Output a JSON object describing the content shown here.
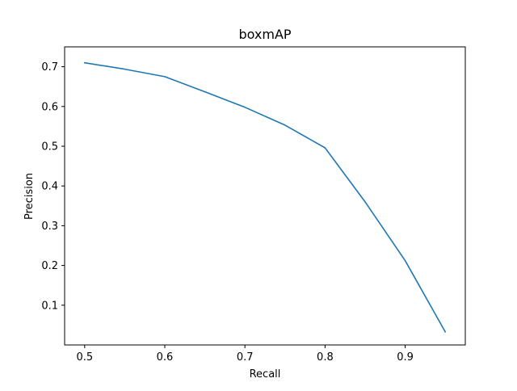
{
  "chart_data": {
    "type": "line",
    "title": "boxmAP",
    "xlabel": "Recall",
    "ylabel": "Precision",
    "xlim": [
      0.475,
      0.975
    ],
    "ylim": [
      0.0,
      0.75
    ],
    "xticks": [
      0.5,
      0.6,
      0.7,
      0.8,
      0.9
    ],
    "xtick_labels": [
      "0.5",
      "0.6",
      "0.7",
      "0.8",
      "0.9"
    ],
    "yticks": [
      0.1,
      0.2,
      0.3,
      0.4,
      0.5,
      0.6,
      0.7
    ],
    "ytick_labels": [
      "0.1",
      "0.2",
      "0.3",
      "0.4",
      "0.5",
      "0.6",
      "0.7"
    ],
    "grid": false,
    "legend": "none",
    "series": [
      {
        "color": "#1f77b4",
        "x": [
          0.5,
          0.55,
          0.6,
          0.65,
          0.7,
          0.75,
          0.8,
          0.85,
          0.9,
          0.95
        ],
        "y": [
          0.71,
          0.694,
          0.675,
          0.637,
          0.598,
          0.553,
          0.496,
          0.36,
          0.212,
          0.033
        ]
      }
    ]
  }
}
